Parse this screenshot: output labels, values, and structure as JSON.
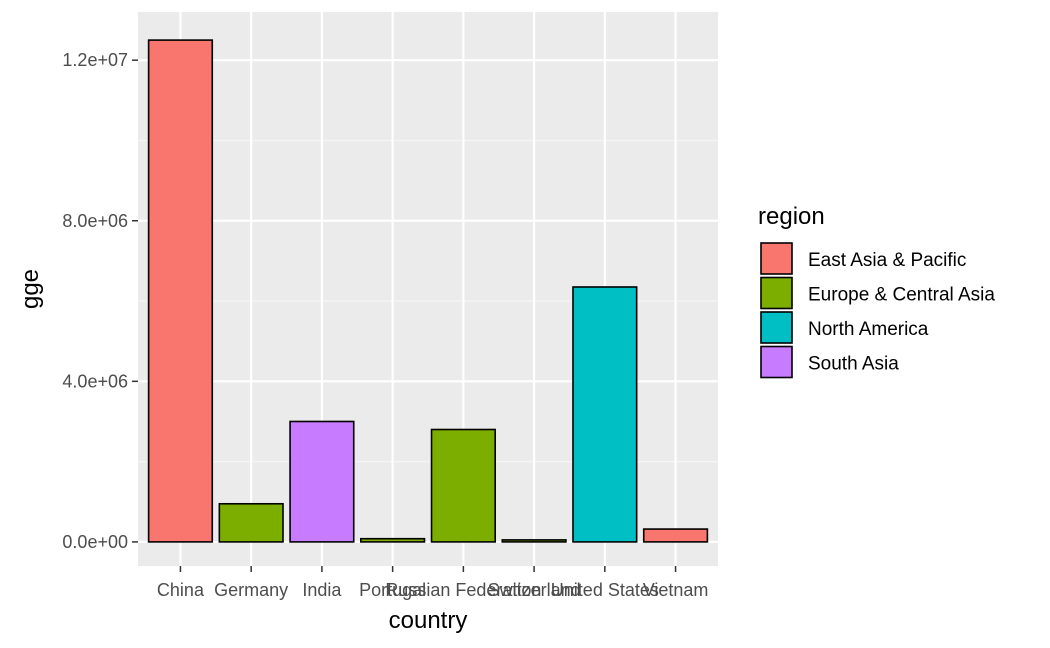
{
  "chart_data": {
    "type": "bar",
    "title": "",
    "xlabel": "country",
    "ylabel": "gge",
    "categories": [
      "China",
      "Germany",
      "India",
      "Portugal",
      "Russian Federation",
      "Switzerland",
      "United States",
      "Vietnam"
    ],
    "values": [
      12500000,
      950000,
      3000000,
      80000,
      2800000,
      50000,
      6350000,
      320000
    ],
    "regions": [
      "East Asia & Pacific",
      "Europe & Central Asia",
      "South Asia",
      "Europe & Central Asia",
      "Europe & Central Asia",
      "Europe & Central Asia",
      "North America",
      "East Asia & Pacific"
    ],
    "ylim": [
      -600000,
      13200000
    ],
    "yticks": [
      0,
      4000000,
      8000000,
      12000000
    ],
    "ytick_labels": [
      "0.0e+00",
      "4.0e+06",
      "8.0e+06",
      "1.2e+07"
    ],
    "grid": true,
    "legend": {
      "title": "region",
      "placement": "right",
      "entries": [
        {
          "label": "East Asia & Pacific",
          "color": "#F8766D"
        },
        {
          "label": "Europe & Central Asia",
          "color": "#7CAE00"
        },
        {
          "label": "North America",
          "color": "#00BFC4"
        },
        {
          "label": "South Asia",
          "color": "#C77CFF"
        }
      ]
    },
    "colors": {
      "panel_background": "#EBEBEB",
      "grid_major": "#FFFFFF",
      "grid_minor": "#F5F5F5",
      "bar_outline": "#000000",
      "tick_text": "#4D4D4D"
    }
  }
}
